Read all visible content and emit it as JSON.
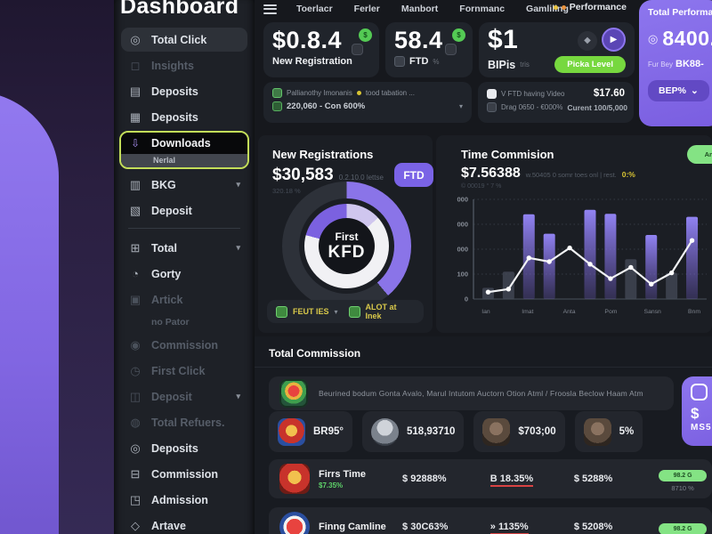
{
  "sidebar": {
    "title": "Dashboard",
    "items": [
      {
        "label": "Total Click",
        "icon": "target-icon",
        "glyph": "◎",
        "state": "hl"
      },
      {
        "label": "Insights",
        "icon": "chat-icon",
        "glyph": "◻",
        "state": "dim"
      },
      {
        "label": "Deposits",
        "icon": "card-icon",
        "glyph": "▤",
        "state": "normal"
      },
      {
        "label": "Deposits",
        "icon": "calendar-icon",
        "glyph": "▦",
        "state": "normal"
      },
      {
        "label": "Downloads",
        "icon": "download-icon",
        "glyph": "⇩",
        "state": "selected",
        "sublabel": "Nerlal"
      },
      {
        "label": "BKG",
        "icon": "document-icon",
        "glyph": "▥",
        "state": "normal",
        "chevron": true
      },
      {
        "label": "Deposit",
        "icon": "badge-icon",
        "glyph": "▧",
        "state": "normal"
      },
      {
        "divider": true
      },
      {
        "label": "Total",
        "icon": "grid-icon",
        "glyph": "⊞",
        "state": "normal",
        "chevron": true
      },
      {
        "label": "Gorty",
        "icon": "wallet-icon",
        "glyph": "◔",
        "state": "normal"
      },
      {
        "label": "Artick",
        "icon": "box-icon",
        "glyph": "▣",
        "state": "dim"
      },
      {
        "label": "no Pator",
        "icon": "",
        "glyph": "",
        "state": "dim",
        "indent": true
      },
      {
        "label": "Commission",
        "icon": "coin-icon",
        "glyph": "◉",
        "state": "dim"
      },
      {
        "label": "First Click",
        "icon": "clock-icon",
        "glyph": "◷",
        "state": "dim"
      },
      {
        "label": "Deposit",
        "icon": "layers-icon",
        "glyph": "◫",
        "state": "dim",
        "chevron": true
      },
      {
        "label": "Total Refuers.",
        "icon": "users-icon",
        "glyph": "◍",
        "state": "dim"
      },
      {
        "label": "Deposits",
        "icon": "target-icon",
        "glyph": "◎",
        "state": "normal"
      },
      {
        "label": "Commission",
        "icon": "table-icon",
        "glyph": "⊟",
        "state": "normal"
      },
      {
        "label": "Admission",
        "icon": "shield-icon",
        "glyph": "◳",
        "state": "normal"
      },
      {
        "label": "Artave",
        "icon": "diamond-icon",
        "glyph": "◇",
        "state": "normal"
      }
    ]
  },
  "topnav": {
    "items": [
      "Toerlacr",
      "Ferler",
      "Manbort",
      "Fornmanc",
      "Gamliling"
    ],
    "right": "Performance"
  },
  "stat_cards": {
    "c1": {
      "value": "$0.8.4",
      "label": "New Registration",
      "badge": "$"
    },
    "c2": {
      "value": "58.4",
      "label": "FTD",
      "suffix": "%",
      "badge": "$"
    },
    "c3": {
      "value": "$1",
      "label": "BIPis",
      "suffix": "tris",
      "button": "Picka Level",
      "tag_glyph": "◆",
      "play_glyph": "▶"
    }
  },
  "performance_card": {
    "title": "Total Performan",
    "icon_glyph": "◎",
    "value": "8400.",
    "sub_pre": "Fur Bey",
    "sub_bold": "BK88-",
    "button": "BEP%",
    "chevron": "⌄"
  },
  "info_bars": {
    "left": {
      "line1a": "Pallianothy Imonanis",
      "line1b": "tood tabation ...",
      "line2": "220,060 - Con 600%"
    },
    "right": {
      "line1": "V FTD having Video",
      "value1": "$17.60",
      "line2": "Drag 0650 - €000%",
      "value2": "Curent 100/5,000"
    }
  },
  "registrations_panel": {
    "title": "New Registrations",
    "value": "$30,583",
    "meta": "0.2.10.0 lettse",
    "sub": "320.18 %",
    "badge": "FTD",
    "donut_center_top": "First",
    "donut_center_bottom": "KFD",
    "footer_left": "FEUT IES",
    "footer_right": "ALOT at Inek",
    "donut": {
      "outer": [
        {
          "color": "#8a74e8",
          "from": 0,
          "to": 140
        },
        {
          "color": "#2d3139",
          "from": 140,
          "to": 360
        }
      ],
      "inner": [
        {
          "color": "#cfc6ee",
          "from": 0,
          "to": 48
        },
        {
          "color": "#f1f1f4",
          "from": 48,
          "to": 285
        },
        {
          "color": "#7b61e0",
          "from": 285,
          "to": 360
        }
      ]
    }
  },
  "commission_panel": {
    "title": "Time Commision",
    "value": "$7.56388",
    "meta": "w.50405 0 somr toes onl | rest.",
    "highlight": "0:%",
    "sub": "© 00019 °  7 %",
    "button": "Anbv"
  },
  "chart_data": {
    "type": "bar",
    "title": "Time Commision",
    "x_labels": [
      "Ian",
      "Imat",
      "Anta",
      "Pom",
      "Sansn",
      "Bnm"
    ],
    "y_ticks": [
      "000",
      "000",
      "000",
      "100",
      "0"
    ],
    "ylim": [
      0,
      400
    ],
    "grid": true,
    "bars": [
      {
        "v": 45,
        "dim": true
      },
      {
        "v": 110,
        "dim": true
      },
      {
        "v": 340,
        "dim": false
      },
      {
        "v": 262,
        "dim": false
      },
      null,
      {
        "v": 358,
        "dim": false
      },
      {
        "v": 342,
        "dim": false
      },
      {
        "v": 160,
        "dim": true
      },
      {
        "v": 257,
        "dim": false
      },
      {
        "v": 105,
        "dim": true
      },
      {
        "v": 330,
        "dim": false
      }
    ],
    "line": [
      28,
      40,
      165,
      150,
      205,
      140,
      82,
      127,
      60,
      105,
      235
    ]
  },
  "total_commission": {
    "title": "Total Commission",
    "description": "Beurined bodum  Gonta Avalo, Marul Intutom Auctorn Otion Atml / Froosla  Beclow Haam Atm",
    "chips": [
      {
        "value": "BR95°",
        "avatar": "crest"
      },
      {
        "value": "518,93710",
        "avatar": "knight"
      },
      {
        "value": "$703;00",
        "avatar": "face"
      },
      {
        "value": "5%",
        "avatar": "face"
      }
    ],
    "side_card": {
      "value": "$",
      "label": "MS5"
    },
    "rows": [
      {
        "name": "Firrs Time",
        "sub": "$7.35%",
        "col1": "$92888%",
        "col2_prefix": "B",
        "col2": "18.35%",
        "col3": "$5288%",
        "pill": "98.2 G",
        "pill_sub": "8710 %"
      },
      {
        "name": "Finng Camline",
        "sub": "",
        "col1": "$30C63%",
        "col2_prefix": "»",
        "col2": "1135%",
        "col3": "$5208%",
        "pill": "98.2 G",
        "pill_sub": ""
      }
    ]
  }
}
